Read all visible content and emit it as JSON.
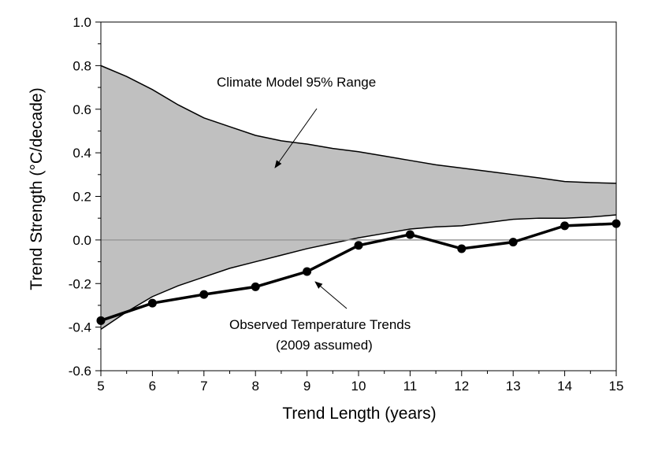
{
  "chart_data": {
    "type": "line",
    "title": "",
    "xlabel": "Trend Length (years)",
    "ylabel": "Trend Strength (°C/decade)",
    "xlim": [
      5,
      15
    ],
    "ylim": [
      -0.6,
      1.0
    ],
    "x_ticks": [
      "5",
      "6",
      "7",
      "8",
      "9",
      "10",
      "11",
      "12",
      "13",
      "14",
      "15"
    ],
    "y_ticks": [
      "-0.6",
      "-0.4",
      "-0.2",
      "0.0",
      "0.2",
      "0.4",
      "0.6",
      "0.8",
      "1.0"
    ],
    "grid": false,
    "zero_line": true,
    "series": [
      {
        "name": "Climate Model 95% Range",
        "kind": "band",
        "x": [
          5,
          5.5,
          6,
          6.5,
          7,
          7.5,
          8,
          8.5,
          9,
          9.5,
          10,
          10.5,
          11,
          11.5,
          12,
          12.5,
          13,
          13.5,
          14,
          14.5,
          15
        ],
        "upper": [
          0.8,
          0.75,
          0.69,
          0.62,
          0.56,
          0.52,
          0.48,
          0.455,
          0.44,
          0.42,
          0.405,
          0.385,
          0.365,
          0.345,
          0.33,
          0.315,
          0.3,
          0.285,
          0.268,
          0.263,
          0.26
        ],
        "lower": [
          -0.41,
          -0.33,
          -0.26,
          -0.21,
          -0.17,
          -0.13,
          -0.1,
          -0.07,
          -0.04,
          -0.015,
          0.01,
          0.03,
          0.05,
          0.06,
          0.065,
          0.08,
          0.095,
          0.1,
          0.1,
          0.105,
          0.115
        ],
        "color": "#c0c0c0"
      },
      {
        "name": "Observed Temperature Trends",
        "kind": "line-markers",
        "x": [
          5,
          6,
          7,
          8,
          9,
          10,
          11,
          12,
          13,
          14,
          15
        ],
        "y": [
          -0.37,
          -0.29,
          -0.25,
          -0.215,
          -0.145,
          -0.025,
          0.025,
          -0.04,
          -0.01,
          0.065,
          0.075
        ],
        "color": "#000000"
      }
    ],
    "annotations": [
      {
        "text": "Climate Model 95% Range",
        "points_to": "band"
      },
      {
        "text": "Observed Temperature Trends",
        "text2": "(2009 assumed)",
        "points_to": "observed"
      }
    ]
  }
}
